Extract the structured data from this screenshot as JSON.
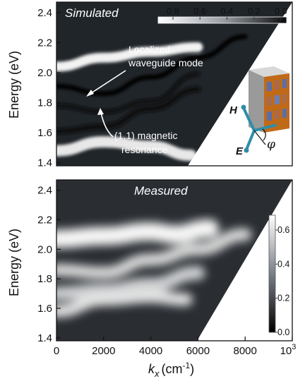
{
  "chart_data": [
    {
      "type": "heatmap",
      "title": "Simulated",
      "ylabel": "Energy (eV)",
      "xlabel": "",
      "xlim": [
        0,
        10000
      ],
      "ylim": [
        1.38,
        2.47
      ],
      "y_ticks": [
        "1.4",
        "1.6",
        "1.8",
        "2.0",
        "2.2",
        "2.4"
      ],
      "colorbar": {
        "placement": "top-right",
        "orientation": "horizontal",
        "colormap": "white-to-black",
        "ticks": [
          "0.8",
          "0.6",
          "0.4",
          "0.2",
          "0.0"
        ]
      },
      "features": [
        {
          "name": "bright band",
          "points": [
            [
              0,
              2.04
            ],
            [
              2000,
              2.1
            ],
            [
              4000,
              2.14
            ],
            [
              6000,
              2.17
            ]
          ]
        },
        {
          "name": "waveguide mode",
          "points": [
            [
              0,
              1.91
            ],
            [
              2000,
              1.86
            ],
            [
              4000,
              1.97
            ],
            [
              6000,
              2.1
            ],
            [
              8000,
              2.24
            ]
          ]
        },
        {
          "name": "(1,1) magnetic resonance",
          "points": [
            [
              0,
              1.78
            ],
            [
              2000,
              1.74
            ],
            [
              4000,
              1.81
            ],
            [
              6000,
              1.99
            ]
          ]
        },
        {
          "name": "lower mode",
          "points": [
            [
              0,
              1.61
            ],
            [
              2000,
              1.64
            ],
            [
              4000,
              1.76
            ],
            [
              6000,
              1.89
            ]
          ]
        },
        {
          "name": "bottom band",
          "points": [
            [
              0,
              1.48
            ],
            [
              2000,
              1.54
            ],
            [
              4000,
              1.51
            ],
            [
              5700,
              1.45
            ]
          ]
        }
      ],
      "annotations": [
        {
          "text_lines": [
            "Localized",
            "waveguide mode"
          ]
        },
        {
          "text_lines": [
            "(1,1) magnetic",
            "resonance"
          ]
        }
      ],
      "inset": {
        "vector_labels": [
          "H",
          "E"
        ],
        "angle_label": "φ"
      }
    },
    {
      "type": "heatmap",
      "title": "Measured",
      "ylabel": "Energy (eV)",
      "xlabel": "k",
      "xlabel_subscript": "x",
      "xlabel_unit": "(cm",
      "xlabel_unit_exp": "-1",
      "xlabel_unit_close": ")",
      "xlim": [
        0,
        10000
      ],
      "ylim": [
        1.38,
        2.47
      ],
      "x_ticks": [
        "0",
        "2000",
        "4000",
        "6000",
        "8000",
        "10"
      ],
      "x_tick_last_exp": "3",
      "y_ticks": [
        "1.4",
        "1.6",
        "1.8",
        "2.0",
        "2.2",
        "2.4"
      ],
      "colorbar": {
        "placement": "right",
        "orientation": "vertical",
        "colormap": "black-to-white",
        "ticks": [
          "0.6",
          "0.4",
          "0.2",
          "0.0"
        ]
      },
      "features": [
        {
          "name": "bright band",
          "points": [
            [
              0,
              2.07
            ],
            [
              2000,
              2.09
            ],
            [
              4000,
              2.12
            ],
            [
              5000,
              2.1
            ],
            [
              6500,
              2.14
            ]
          ]
        },
        {
          "name": "upper band",
          "points": [
            [
              0,
              1.86
            ],
            [
              2000,
              1.84
            ],
            [
              4000,
              1.93
            ],
            [
              6000,
              2.0
            ],
            [
              8000,
              2.1
            ]
          ]
        },
        {
          "name": "middle band",
          "points": [
            [
              0,
              1.7
            ],
            [
              2000,
              1.72
            ],
            [
              4000,
              1.76
            ],
            [
              6000,
              1.84
            ]
          ]
        },
        {
          "name": "lower band",
          "points": [
            [
              0,
              1.58
            ],
            [
              2000,
              1.66
            ],
            [
              4000,
              1.68
            ],
            [
              5500,
              1.66
            ]
          ]
        }
      ]
    }
  ]
}
